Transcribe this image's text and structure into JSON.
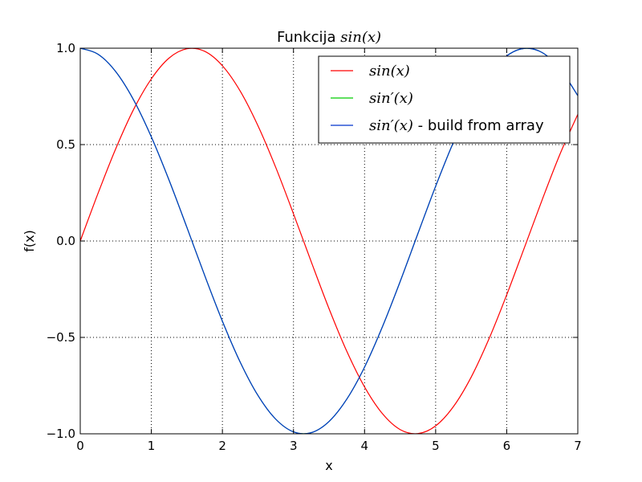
{
  "chart_data": {
    "type": "line",
    "title": {
      "prefix": "Funkcija ",
      "math": "sin(x)"
    },
    "xlabel": "x",
    "ylabel": "f(x)",
    "xlim": [
      0,
      7
    ],
    "ylim": [
      -1.0,
      1.0
    ],
    "xticks": [
      0,
      1,
      2,
      3,
      4,
      5,
      6,
      7
    ],
    "xtick_labels": [
      "0",
      "1",
      "2",
      "3",
      "4",
      "5",
      "6",
      "7"
    ],
    "yticks": [
      -1.0,
      -0.5,
      0.0,
      0.5,
      1.0
    ],
    "ytick_labels": [
      "−1.0",
      "−0.5",
      "0.0",
      "0.5",
      "1.0"
    ],
    "grid": true,
    "legend_position": "top-right",
    "x": [
      0,
      0.25,
      0.5,
      0.75,
      1.0,
      1.25,
      1.5,
      1.75,
      2.0,
      2.25,
      2.5,
      2.75,
      3.0,
      3.25,
      3.5,
      3.75,
      4.0,
      4.25,
      4.5,
      4.75,
      5.0,
      5.25,
      5.5,
      5.75,
      6.0,
      6.25,
      6.5,
      6.75,
      7.0
    ],
    "series": [
      {
        "name": "sin(x)",
        "legend_math": "sin(x)",
        "legend_suffix": "",
        "color": "#ff0000",
        "values": [
          0.0,
          0.247,
          0.479,
          0.682,
          0.841,
          0.949,
          0.997,
          0.984,
          0.909,
          0.778,
          0.598,
          0.382,
          0.141,
          -0.108,
          -0.351,
          -0.572,
          -0.757,
          -0.895,
          -0.978,
          -0.999,
          -0.959,
          -0.859,
          -0.706,
          -0.508,
          -0.279,
          -0.033,
          0.215,
          0.451,
          0.657
        ]
      },
      {
        "name": "sin'(x)",
        "legend_math": "sin′(x)",
        "legend_suffix": "",
        "color": "#00cc00",
        "values": [
          1.0,
          0.969,
          0.878,
          0.732,
          0.54,
          0.315,
          0.071,
          -0.178,
          -0.416,
          -0.628,
          -0.801,
          -0.924,
          -0.99,
          -0.994,
          -0.936,
          -0.82,
          -0.654,
          -0.446,
          -0.211,
          0.038,
          0.284,
          0.512,
          0.709,
          0.861,
          0.96,
          0.999,
          0.977,
          0.893,
          0.754
        ]
      },
      {
        "name": "sin'(x) - build from array",
        "legend_math": "sin′(x)",
        "legend_suffix": " - build from array",
        "color": "#0033cc",
        "values": [
          1.0,
          0.969,
          0.878,
          0.732,
          0.54,
          0.315,
          0.071,
          -0.178,
          -0.416,
          -0.628,
          -0.801,
          -0.924,
          -0.99,
          -0.994,
          -0.936,
          -0.82,
          -0.654,
          -0.446,
          -0.211,
          0.038,
          0.284,
          0.512,
          0.709,
          0.861,
          0.96,
          0.999,
          0.977,
          0.893,
          0.754
        ]
      }
    ]
  }
}
